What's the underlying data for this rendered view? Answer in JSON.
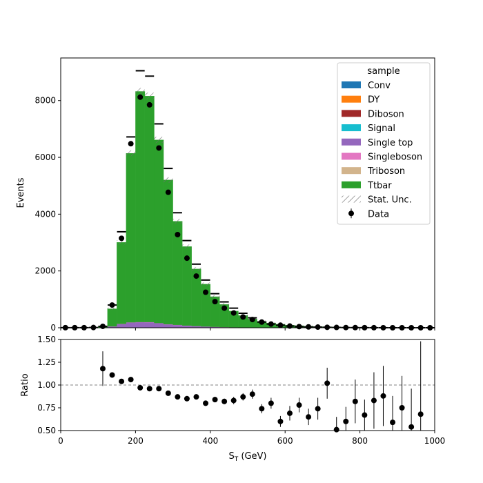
{
  "chart_data": [
    {
      "type": "bar",
      "stacked": true,
      "histtype": "step-filled",
      "xlabel": "S_T (GeV)",
      "xlabel_main": "S",
      "xlabel_sub": "T",
      "xlabel_unit": " (GeV)",
      "ylabel": "Events",
      "xlim": [
        0,
        1000
      ],
      "ylim": [
        0,
        9500
      ],
      "yticks": [
        0,
        2000,
        4000,
        6000,
        8000
      ],
      "bin_edges": [
        0,
        25,
        50,
        75,
        100,
        125,
        150,
        175,
        200,
        225,
        250,
        275,
        300,
        325,
        350,
        375,
        400,
        425,
        450,
        475,
        500,
        525,
        550,
        575,
        600,
        625,
        650,
        675,
        700,
        725,
        750,
        775,
        800,
        825,
        850,
        875,
        900,
        925,
        950,
        975,
        1000
      ],
      "legend_title": "sample",
      "legend_position": "upper right",
      "series": [
        {
          "name": "Conv",
          "color": "#1f77b4",
          "values": [
            0,
            0,
            0,
            0,
            0,
            0,
            0,
            0,
            0,
            0,
            0,
            0,
            0,
            0,
            0,
            0,
            0,
            0,
            0,
            0,
            0,
            0,
            0,
            0,
            0,
            0,
            0,
            0,
            0,
            0,
            0,
            0,
            0,
            0,
            0,
            0,
            0,
            0,
            0,
            0
          ]
        },
        {
          "name": "DY",
          "color": "#ff7f0e",
          "values": [
            0,
            0,
            0,
            0,
            0,
            2,
            4,
            6,
            6,
            5,
            4,
            3,
            2,
            2,
            1,
            1,
            1,
            0,
            0,
            0,
            0,
            0,
            0,
            0,
            0,
            0,
            0,
            0,
            0,
            0,
            0,
            0,
            0,
            0,
            0,
            0,
            0,
            0,
            0,
            0
          ]
        },
        {
          "name": "Diboson",
          "color": "#a02828",
          "values": [
            0,
            0,
            0,
            0,
            0,
            2,
            4,
            5,
            5,
            4,
            3,
            3,
            2,
            2,
            1,
            1,
            1,
            0,
            0,
            0,
            0,
            0,
            0,
            0,
            0,
            0,
            0,
            0,
            0,
            0,
            0,
            0,
            0,
            0,
            0,
            0,
            0,
            0,
            0,
            0
          ]
        },
        {
          "name": "Signal",
          "color": "#17becf",
          "values": [
            0,
            0,
            0,
            0,
            0,
            1,
            2,
            3,
            3,
            3,
            2,
            2,
            2,
            1,
            1,
            1,
            1,
            0,
            0,
            0,
            0,
            0,
            0,
            0,
            0,
            0,
            0,
            0,
            0,
            0,
            0,
            0,
            0,
            0,
            0,
            0,
            0,
            0,
            0,
            0
          ]
        },
        {
          "name": "Single top",
          "color": "#9467bd",
          "values": [
            2,
            2,
            2,
            3,
            10,
            40,
            120,
            170,
            180,
            180,
            150,
            110,
            90,
            70,
            55,
            40,
            30,
            22,
            16,
            12,
            9,
            7,
            5,
            4,
            3,
            2,
            2,
            2,
            1,
            1,
            1,
            1,
            1,
            1,
            1,
            0,
            0,
            0,
            0,
            0
          ]
        },
        {
          "name": "Singleboson",
          "color": "#e377c2",
          "values": [
            0,
            0,
            0,
            0,
            0,
            3,
            6,
            8,
            8,
            7,
            6,
            5,
            4,
            3,
            2,
            2,
            1,
            1,
            1,
            0,
            0,
            0,
            0,
            0,
            0,
            0,
            0,
            0,
            0,
            0,
            0,
            0,
            0,
            0,
            0,
            0,
            0,
            0,
            0,
            0
          ]
        },
        {
          "name": "Triboson",
          "color": "#d2b48c",
          "values": [
            0,
            0,
            0,
            0,
            0,
            0,
            0,
            0,
            0,
            0,
            0,
            0,
            0,
            0,
            0,
            0,
            0,
            0,
            0,
            0,
            0,
            0,
            0,
            0,
            0,
            0,
            0,
            0,
            0,
            0,
            0,
            0,
            0,
            0,
            0,
            0,
            0,
            0,
            0,
            0
          ]
        },
        {
          "name": "Ttbar",
          "color": "#2ca02c",
          "values": [
            8,
            8,
            8,
            10,
            30,
            620,
            2870,
            5950,
            8120,
            7960,
            6450,
            5080,
            3650,
            2780,
            2010,
            1490,
            1060,
            800,
            570,
            420,
            300,
            220,
            160,
            120,
            90,
            70,
            52,
            40,
            30,
            23,
            18,
            14,
            10,
            8,
            7,
            5,
            4,
            4,
            3,
            2
          ]
        }
      ],
      "stat_unc_label": "Stat. Unc.",
      "data_label": "Data",
      "data_values": [
        3,
        3,
        3,
        8,
        50,
        800,
        3150,
        6480,
        8120,
        7850,
        6330,
        4770,
        3280,
        2450,
        1820,
        1250,
        920,
        690,
        520,
        380,
        290,
        200,
        130,
        90,
        60,
        40,
        30,
        23,
        16,
        11,
        7,
        5,
        3,
        2,
        1,
        0,
        0,
        0,
        0,
        0
      ],
      "step_markers": [
        0,
        0,
        0,
        0,
        0,
        0,
        3380,
        6720,
        9050,
        8860,
        7180,
        5610,
        4050,
        3070,
        2240,
        1680,
        1200,
        910,
        690,
        510,
        350,
        0,
        0,
        0,
        0,
        0,
        0,
        0,
        0,
        0,
        0,
        0,
        0,
        0,
        0,
        0,
        0,
        0,
        0,
        0
      ]
    },
    {
      "type": "scatter",
      "xlabel": "S_T (GeV)",
      "ylabel": "Ratio",
      "xlim": [
        0,
        1000
      ],
      "ylim": [
        0.5,
        1.5
      ],
      "xticks": [
        0,
        200,
        400,
        600,
        800,
        1000
      ],
      "yticks": [
        "0.50",
        "0.75",
        "1.00",
        "1.25",
        "1.50"
      ],
      "reference_line": 1.0,
      "x": [
        112.5,
        137.5,
        162.5,
        187.5,
        212.5,
        237.5,
        262.5,
        287.5,
        312.5,
        337.5,
        362.5,
        387.5,
        412.5,
        437.5,
        462.5,
        487.5,
        512.5,
        537.5,
        562.5,
        587.5,
        612.5,
        637.5,
        662.5,
        687.5,
        712.5,
        737.5,
        762.5,
        787.5,
        812.5,
        837.5,
        862.5,
        887.5,
        912.5,
        937.5,
        962.5
      ],
      "y": [
        1.18,
        1.11,
        1.04,
        1.06,
        0.97,
        0.96,
        0.96,
        0.91,
        0.87,
        0.85,
        0.87,
        0.8,
        0.84,
        0.82,
        0.83,
        0.87,
        0.9,
        0.74,
        0.8,
        0.6,
        0.69,
        0.78,
        0.65,
        0.74,
        1.02,
        0.51,
        0.6,
        0.82,
        0.67,
        0.83,
        0.88,
        0.59,
        0.75,
        0.54,
        0.68
      ],
      "yerr": [
        0.19,
        0.03,
        0.02,
        0.01,
        0.01,
        0.01,
        0.01,
        0.01,
        0.02,
        0.02,
        0.02,
        0.03,
        0.03,
        0.03,
        0.04,
        0.04,
        0.05,
        0.05,
        0.06,
        0.06,
        0.08,
        0.08,
        0.09,
        0.12,
        0.17,
        0.14,
        0.16,
        0.24,
        0.17,
        0.31,
        0.33,
        0.29,
        0.35,
        0.42,
        0.8
      ]
    }
  ]
}
